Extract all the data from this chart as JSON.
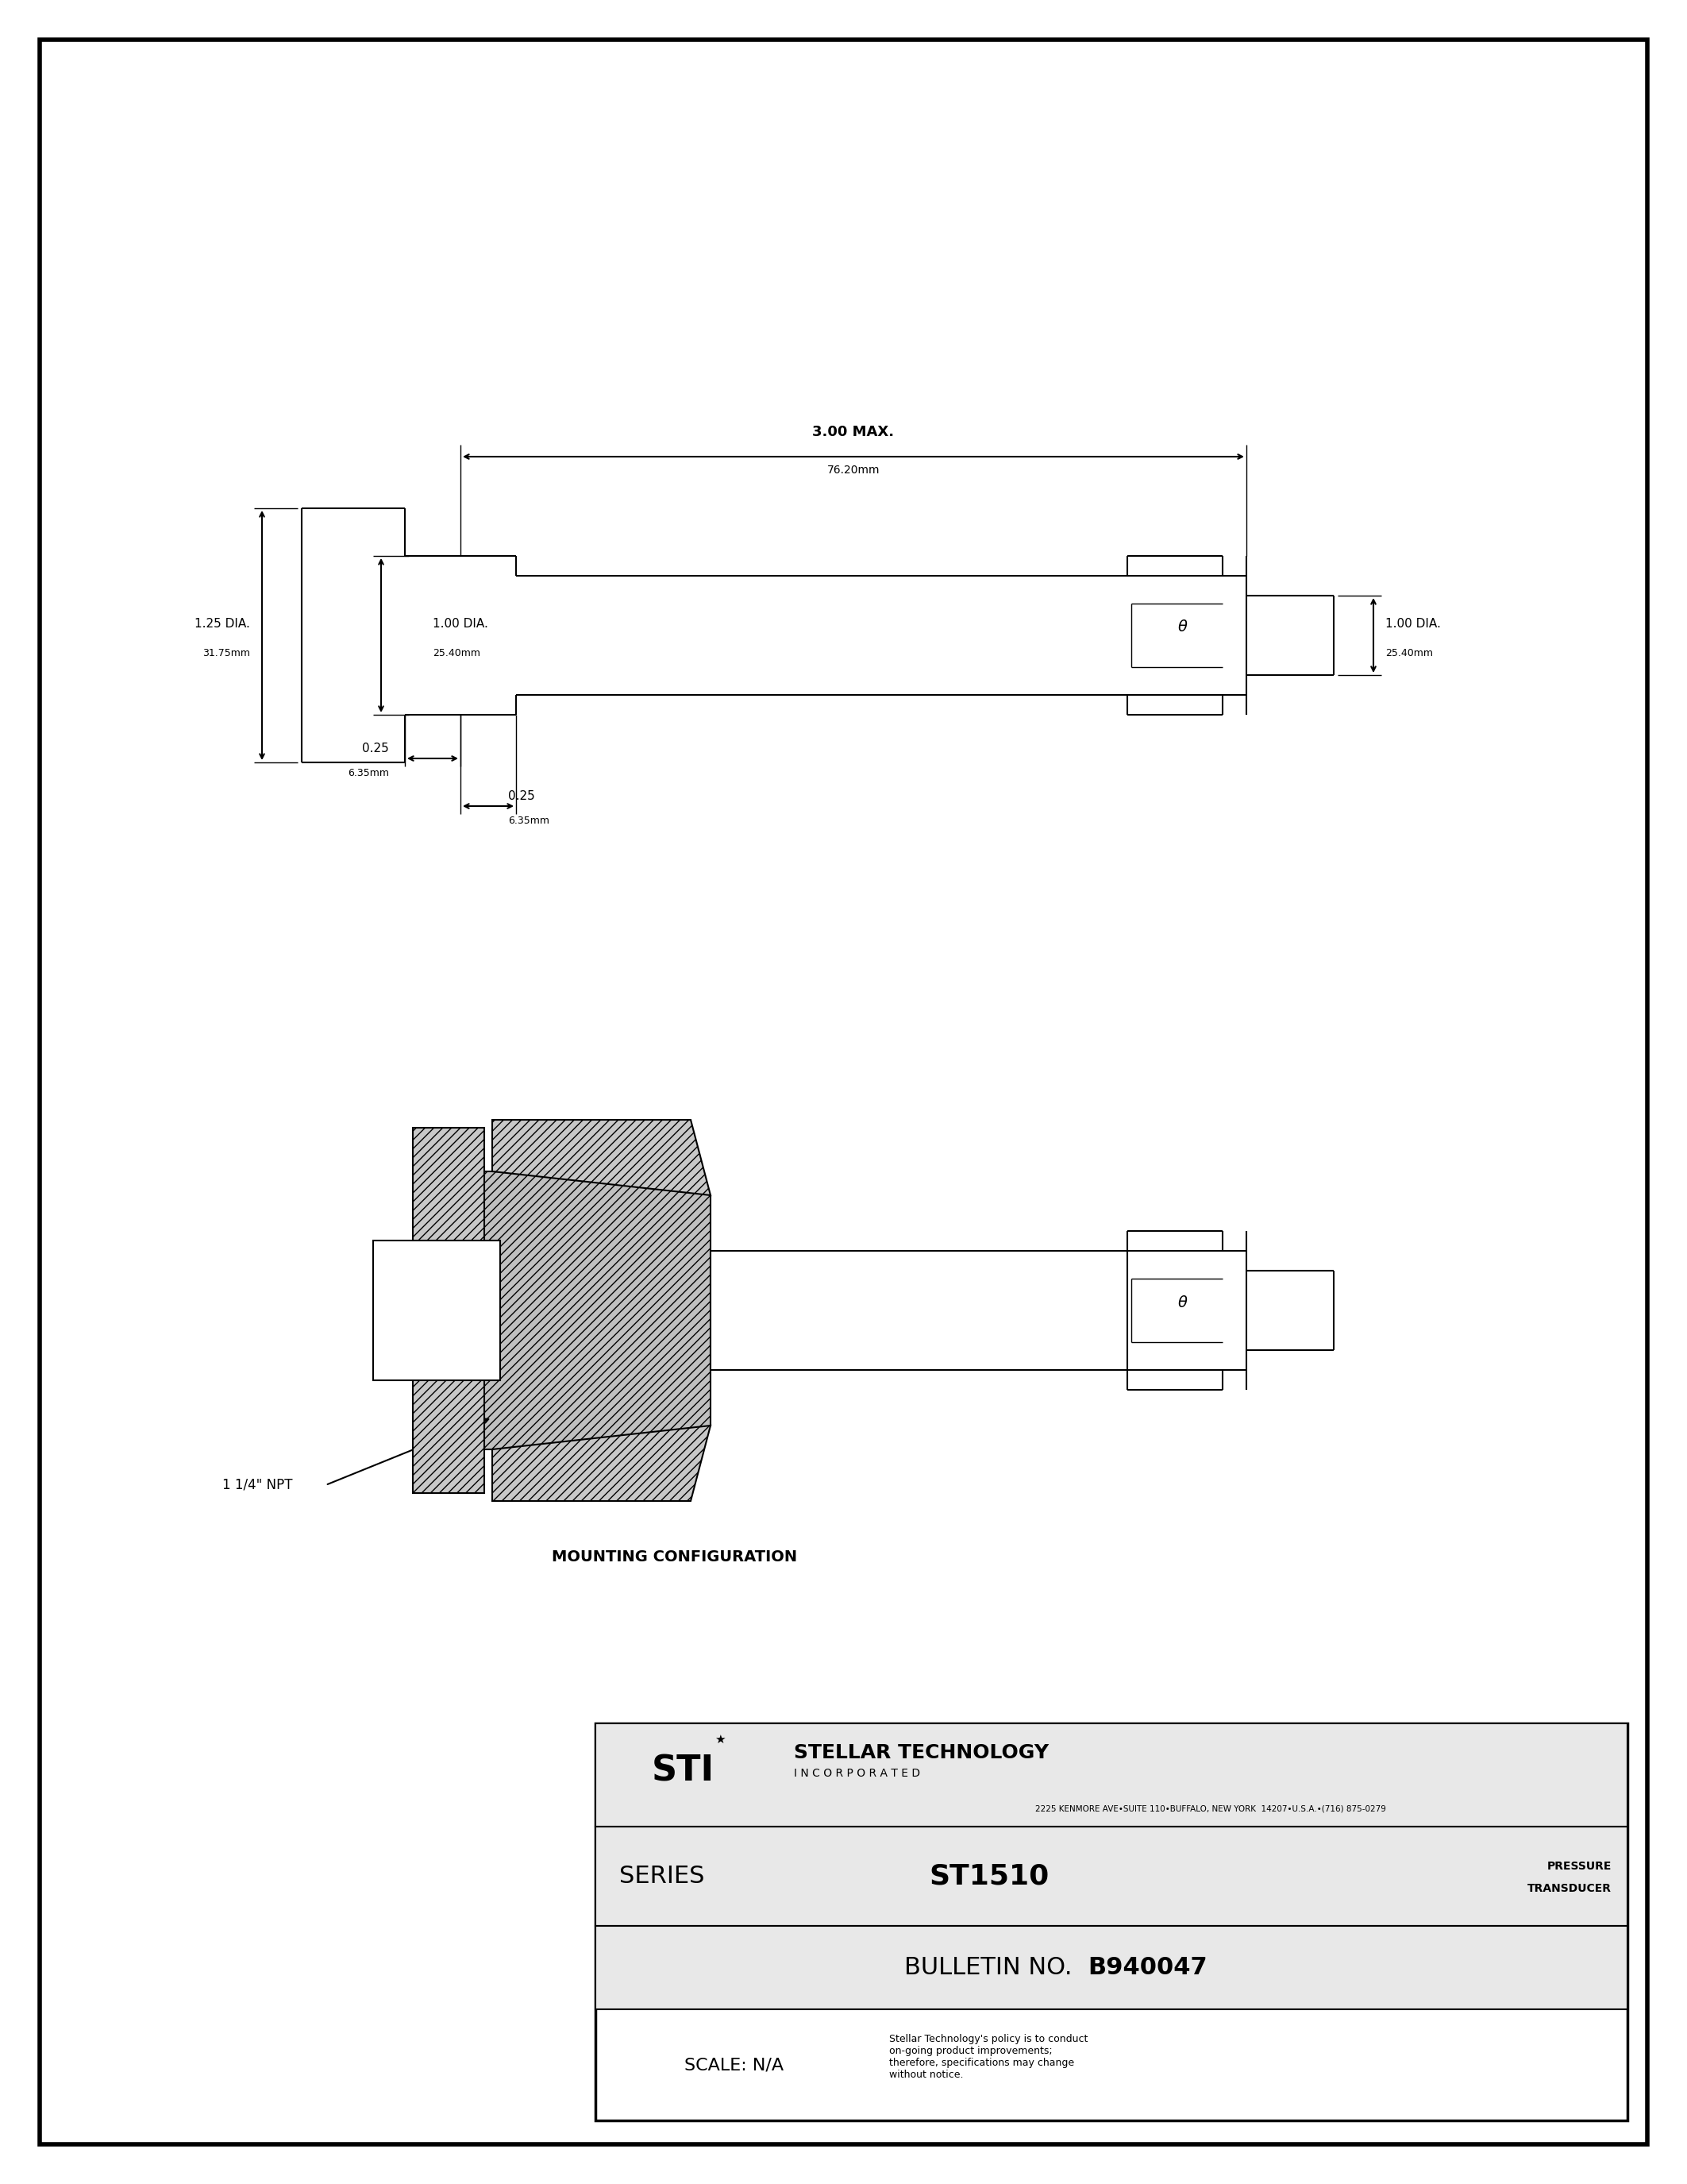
{
  "page_bg": "#ffffff",
  "border_color": "#000000",
  "line_color": "#000000",
  "title_text": "STELLAR TECHNOLOGY",
  "incorporated_text": "I N C O R P O R A T E D",
  "address_text": "2225 KENMORE AVE•SUITE 110•BUFFALO, NEW YORK  14207•U.S.A.•(716) 875-0279",
  "mounting_config_text": "MOUNTING CONFIGURATION",
  "npt_label": "1 1/4\" NPT",
  "dim1_label": "1.25 DIA.",
  "dim1_sub": "31.75mm",
  "dim2_label": "1.00 DIA.",
  "dim2_sub": "25.40mm",
  "dim3_label": "1.00 DIA.",
  "dim3_sub": "25.40mm",
  "dim4_label": "3.00 MAX.",
  "dim4_sub": "76.20mm",
  "dim5_label": "0.25",
  "dim5_sub": "6.35mm",
  "dim6_label": "0.25",
  "dim6_sub": "6.35mm",
  "scale_label": "SCALE: N/A",
  "policy_text": "Stellar Technology's policy is to conduct\non-going product improvements;\ntherefore, specifications may change\nwithout notice."
}
